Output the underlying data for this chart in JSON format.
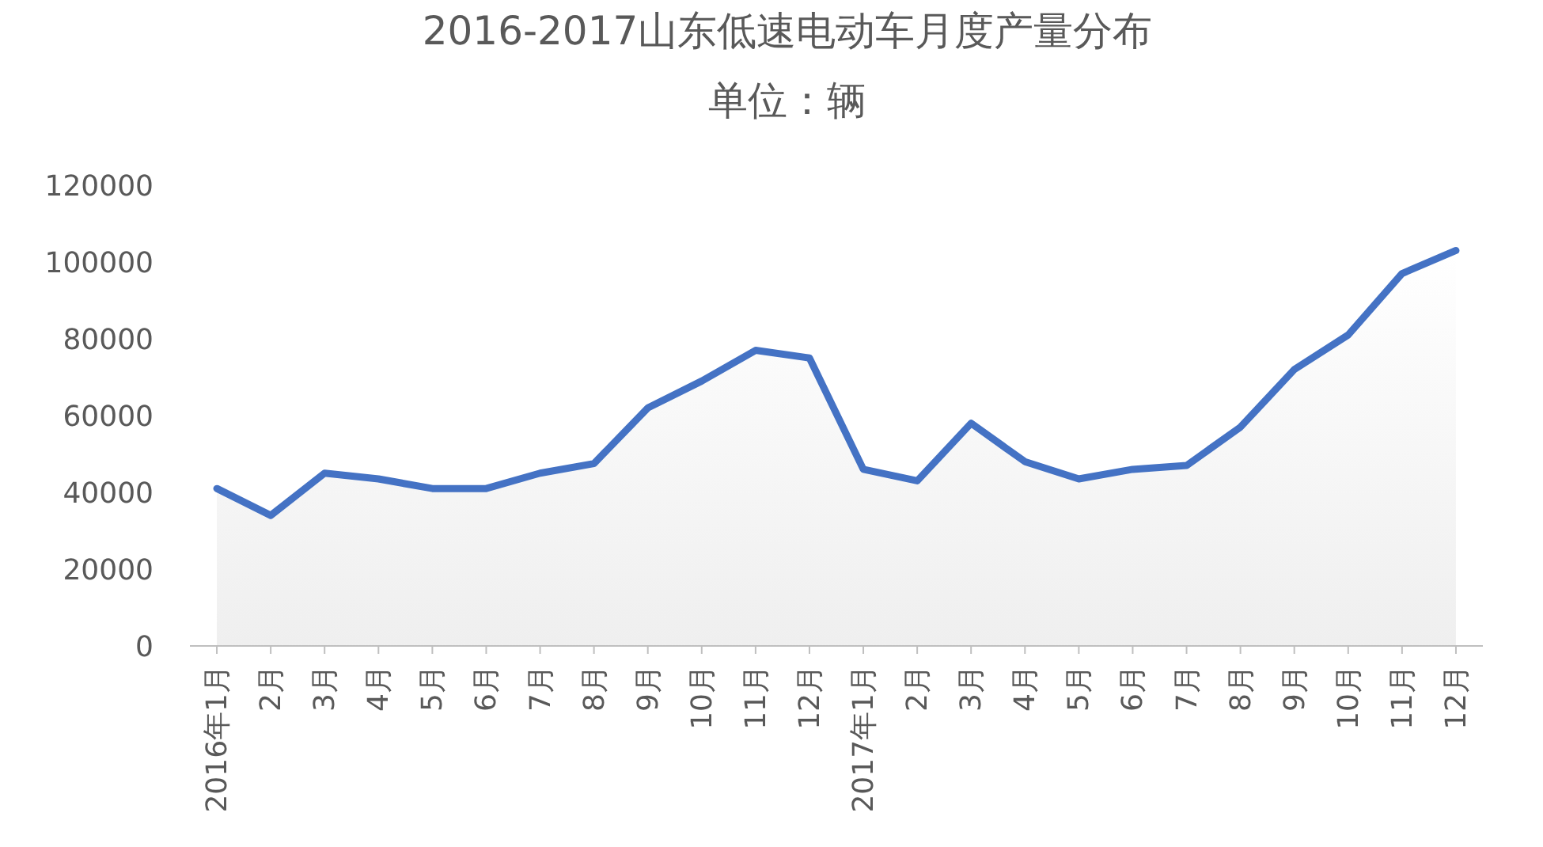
{
  "chart_data": {
    "type": "area",
    "title": "2016-2017山东低速电动车月度产量分布",
    "subtitle": "单位：辆",
    "categories": [
      "2016年1月",
      "2月",
      "3月",
      "4月",
      "5月",
      "6月",
      "7月",
      "8月",
      "9月",
      "10月",
      "11月",
      "12月",
      "2017年1月",
      "2月",
      "3月",
      "4月",
      "5月",
      "6月",
      "7月",
      "8月",
      "9月",
      "10月",
      "11月",
      "12月"
    ],
    "series": [
      {
        "color": "#4472c4",
        "values": [
          41000,
          34000,
          45000,
          43500,
          41000,
          41000,
          45000,
          47500,
          62000,
          69000,
          77000,
          75000,
          46000,
          43000,
          58000,
          48000,
          43500,
          46000,
          47000,
          57000,
          72000,
          81000,
          97000,
          103000
        ]
      }
    ],
    "ylim": [
      0,
      120000
    ],
    "yticks": [
      0,
      20000,
      40000,
      60000,
      80000,
      100000,
      120000
    ],
    "grid": false
  }
}
